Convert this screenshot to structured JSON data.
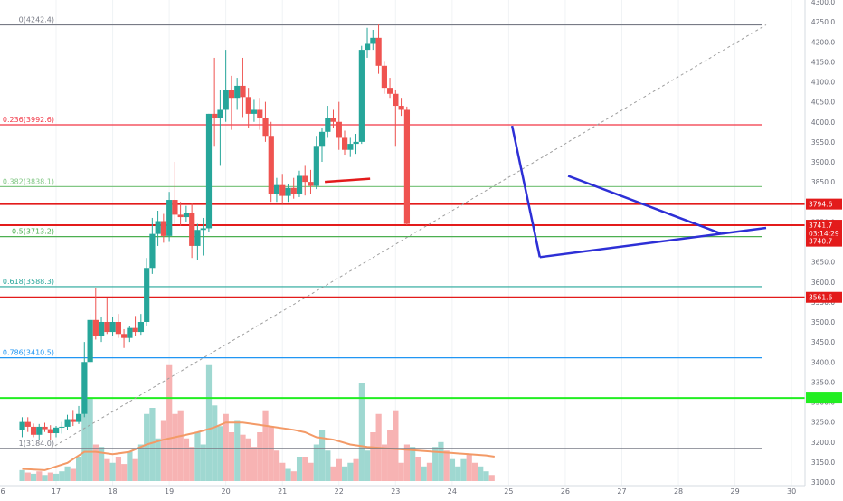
{
  "chart_data": {
    "type": "candlestick",
    "instrument_timeframe": "4h",
    "x_axis": {
      "tick_labels": [
        "6",
        "17",
        "18",
        "19",
        "20",
        "21",
        "22",
        "23",
        "24",
        "25",
        "26",
        "27",
        "28",
        "29",
        "30"
      ]
    },
    "y_axis": {
      "ylim": [
        3100,
        4300
      ],
      "tick_labels": [
        "4300.0",
        "4250.0",
        "4200.0",
        "4150.0",
        "4100.0",
        "4050.0",
        "4000.0",
        "3950.0",
        "3900.0",
        "3850.0",
        "3800.0",
        "3750.0",
        "3700.0",
        "3650.0",
        "3600.0",
        "3550.0",
        "3500.0",
        "3450.0",
        "3400.0",
        "3350.0",
        "3300.0",
        "3250.0",
        "3200.0",
        "3150.0",
        "3100.0"
      ],
      "tick_values": [
        4300,
        4250,
        4200,
        4150,
        4100,
        4050,
        4000,
        3950,
        3900,
        3850,
        3800,
        3750,
        3700,
        3650,
        3600,
        3550,
        3500,
        3450,
        3400,
        3350,
        3300,
        3250,
        3200,
        3150,
        3100
      ]
    },
    "fib_levels": [
      {
        "label": "0(4242.4)",
        "value": 4242.4,
        "color": "#787b86"
      },
      {
        "label": "0.236(3992.6)",
        "value": 3992.6,
        "color": "#f23645"
      },
      {
        "label": "0.382(3838.1)",
        "value": 3838.1,
        "color": "#81c784"
      },
      {
        "label": "0.5(3713.2)",
        "value": 3713.2,
        "color": "#4caf50"
      },
      {
        "label": "0.618(3588.3)",
        "value": 3588.3,
        "color": "#26a69a"
      },
      {
        "label": "0.786(3410.5)",
        "value": 3410.5,
        "color": "#2196f3"
      },
      {
        "label": "1(3184.0)",
        "value": 3184.0,
        "color": "#787b86"
      }
    ],
    "horizontal_lines": [
      {
        "value": 3794.6,
        "color": "#e31b1b"
      },
      {
        "value": 3741.7,
        "color": "#e31b1b"
      },
      {
        "value": 3561.6,
        "color": "#e31b1b"
      },
      {
        "value": 3310.0,
        "color": "#22ee22"
      }
    ],
    "price_tags": [
      {
        "label": "3794.6",
        "value": 3794.6,
        "color": "#e31b1b"
      },
      {
        "label": "3741.7",
        "value": 3741.7,
        "color": "#e31b1b"
      },
      {
        "label": "03:14:29",
        "value": 3722,
        "color": "#e31b1b"
      },
      {
        "label": "3740.7",
        "value": 3702,
        "color": "#e31b1b"
      },
      {
        "label": "3561.6",
        "value": 3561.6,
        "color": "#e31b1b"
      },
      {
        "label": "",
        "value": 3310.0,
        "color": "#22ee22"
      }
    ],
    "trend_lines": [
      {
        "name": "fib-diagonal",
        "style": "dashed",
        "color": "#9e9e9e",
        "from": [
          16.9,
          3184.0
        ],
        "to": [
          29.55,
          4242.4
        ]
      },
      {
        "name": "triangle-drop",
        "style": "solid",
        "color": "#2d2fd6",
        "from": [
          25.06,
          3990
        ],
        "to": [
          25.55,
          3662
        ]
      },
      {
        "name": "triangle-lower",
        "style": "solid",
        "color": "#2d2fd6",
        "from": [
          25.55,
          3662
        ],
        "to": [
          29.55,
          3735
        ]
      },
      {
        "name": "triangle-upper",
        "style": "solid",
        "color": "#2d2fd6",
        "from": [
          26.05,
          3865
        ],
        "to": [
          28.75,
          3721
        ]
      },
      {
        "name": "red-segment",
        "style": "solid",
        "color": "#e31b1b",
        "from": [
          21.75,
          3850
        ],
        "to": [
          22.55,
          3858
        ]
      }
    ],
    "candles": [
      {
        "t": 16.4,
        "o": 3230,
        "h": 3262,
        "l": 3212,
        "c": 3250
      },
      {
        "t": 16.5,
        "o": 3250,
        "h": 3262,
        "l": 3225,
        "c": 3238
      },
      {
        "t": 16.6,
        "o": 3238,
        "h": 3246,
        "l": 3212,
        "c": 3218
      },
      {
        "t": 16.7,
        "o": 3218,
        "h": 3245,
        "l": 3205,
        "c": 3238
      },
      {
        "t": 16.8,
        "o": 3238,
        "h": 3248,
        "l": 3225,
        "c": 3232
      },
      {
        "t": 16.9,
        "o": 3232,
        "h": 3242,
        "l": 3206,
        "c": 3222
      },
      {
        "t": 17.0,
        "o": 3222,
        "h": 3240,
        "l": 3212,
        "c": 3236
      },
      {
        "t": 17.1,
        "o": 3236,
        "h": 3250,
        "l": 3221,
        "c": 3238
      },
      {
        "t": 17.2,
        "o": 3238,
        "h": 3268,
        "l": 3230,
        "c": 3257
      },
      {
        "t": 17.3,
        "o": 3257,
        "h": 3280,
        "l": 3240,
        "c": 3250
      },
      {
        "t": 17.4,
        "o": 3250,
        "h": 3290,
        "l": 3245,
        "c": 3270
      },
      {
        "t": 17.5,
        "o": 3270,
        "h": 3450,
        "l": 3262,
        "c": 3400
      },
      {
        "t": 17.6,
        "o": 3400,
        "h": 3520,
        "l": 3395,
        "c": 3505
      },
      {
        "t": 17.7,
        "o": 3505,
        "h": 3585,
        "l": 3456,
        "c": 3465
      },
      {
        "t": 17.8,
        "o": 3465,
        "h": 3512,
        "l": 3450,
        "c": 3500
      },
      {
        "t": 17.9,
        "o": 3500,
        "h": 3560,
        "l": 3470,
        "c": 3475
      },
      {
        "t": 18.0,
        "o": 3475,
        "h": 3512,
        "l": 3466,
        "c": 3500
      },
      {
        "t": 18.1,
        "o": 3500,
        "h": 3520,
        "l": 3460,
        "c": 3470
      },
      {
        "t": 18.2,
        "o": 3470,
        "h": 3482,
        "l": 3435,
        "c": 3460
      },
      {
        "t": 18.3,
        "o": 3460,
        "h": 3490,
        "l": 3450,
        "c": 3485
      },
      {
        "t": 18.4,
        "o": 3485,
        "h": 3515,
        "l": 3465,
        "c": 3475
      },
      {
        "t": 18.5,
        "o": 3475,
        "h": 3520,
        "l": 3468,
        "c": 3500
      },
      {
        "t": 18.6,
        "o": 3500,
        "h": 3660,
        "l": 3490,
        "c": 3635
      },
      {
        "t": 18.7,
        "o": 3635,
        "h": 3760,
        "l": 3620,
        "c": 3720
      },
      {
        "t": 18.8,
        "o": 3720,
        "h": 3778,
        "l": 3690,
        "c": 3752
      },
      {
        "t": 18.9,
        "o": 3752,
        "h": 3770,
        "l": 3698,
        "c": 3715
      },
      {
        "t": 19.0,
        "o": 3715,
        "h": 3825,
        "l": 3700,
        "c": 3805
      },
      {
        "t": 19.1,
        "o": 3805,
        "h": 3900,
        "l": 3745,
        "c": 3768
      },
      {
        "t": 19.2,
        "o": 3768,
        "h": 3800,
        "l": 3740,
        "c": 3762
      },
      {
        "t": 19.3,
        "o": 3762,
        "h": 3790,
        "l": 3750,
        "c": 3772
      },
      {
        "t": 19.4,
        "o": 3772,
        "h": 3798,
        "l": 3660,
        "c": 3690
      },
      {
        "t": 19.5,
        "o": 3690,
        "h": 3745,
        "l": 3655,
        "c": 3730
      },
      {
        "t": 19.6,
        "o": 3730,
        "h": 3760,
        "l": 3666,
        "c": 3734
      },
      {
        "t": 19.7,
        "o": 3734,
        "h": 4020,
        "l": 3725,
        "c": 4020
      },
      {
        "t": 19.8,
        "o": 4020,
        "h": 4160,
        "l": 3940,
        "c": 4010
      },
      {
        "t": 19.9,
        "o": 4010,
        "h": 4080,
        "l": 3890,
        "c": 4030
      },
      {
        "t": 20.0,
        "o": 4030,
        "h": 4180,
        "l": 4000,
        "c": 4080
      },
      {
        "t": 20.1,
        "o": 4080,
        "h": 4115,
        "l": 3980,
        "c": 4060
      },
      {
        "t": 20.2,
        "o": 4060,
        "h": 4110,
        "l": 4030,
        "c": 4090
      },
      {
        "t": 20.3,
        "o": 4090,
        "h": 4160,
        "l": 4012,
        "c": 4062
      },
      {
        "t": 20.4,
        "o": 4062,
        "h": 4085,
        "l": 3985,
        "c": 4020
      },
      {
        "t": 20.5,
        "o": 4020,
        "h": 4055,
        "l": 4000,
        "c": 4030
      },
      {
        "t": 20.6,
        "o": 4030,
        "h": 4060,
        "l": 3980,
        "c": 4010
      },
      {
        "t": 20.7,
        "o": 4010,
        "h": 4050,
        "l": 3950,
        "c": 3965
      },
      {
        "t": 20.8,
        "o": 3965,
        "h": 4000,
        "l": 3800,
        "c": 3820
      },
      {
        "t": 20.9,
        "o": 3820,
        "h": 3860,
        "l": 3800,
        "c": 3842
      },
      {
        "t": 21.0,
        "o": 3842,
        "h": 3870,
        "l": 3795,
        "c": 3815
      },
      {
        "t": 21.1,
        "o": 3815,
        "h": 3845,
        "l": 3800,
        "c": 3835
      },
      {
        "t": 21.2,
        "o": 3835,
        "h": 3860,
        "l": 3808,
        "c": 3820
      },
      {
        "t": 21.3,
        "o": 3820,
        "h": 3878,
        "l": 3812,
        "c": 3865
      },
      {
        "t": 21.4,
        "o": 3865,
        "h": 3890,
        "l": 3816,
        "c": 3850
      },
      {
        "t": 21.5,
        "o": 3850,
        "h": 3880,
        "l": 3820,
        "c": 3840
      },
      {
        "t": 21.6,
        "o": 3840,
        "h": 3965,
        "l": 3832,
        "c": 3940
      },
      {
        "t": 21.7,
        "o": 3940,
        "h": 3985,
        "l": 3900,
        "c": 3975
      },
      {
        "t": 21.8,
        "o": 3975,
        "h": 4040,
        "l": 3960,
        "c": 4010
      },
      {
        "t": 21.9,
        "o": 4010,
        "h": 4030,
        "l": 3985,
        "c": 4000
      },
      {
        "t": 22.0,
        "o": 4000,
        "h": 4050,
        "l": 3930,
        "c": 3960
      },
      {
        "t": 22.1,
        "o": 3960,
        "h": 3978,
        "l": 3918,
        "c": 3930
      },
      {
        "t": 22.2,
        "o": 3930,
        "h": 3960,
        "l": 3912,
        "c": 3945
      },
      {
        "t": 22.3,
        "o": 3945,
        "h": 3970,
        "l": 3920,
        "c": 3950
      },
      {
        "t": 22.4,
        "o": 3950,
        "h": 4190,
        "l": 3945,
        "c": 4180
      },
      {
        "t": 22.5,
        "o": 4180,
        "h": 4235,
        "l": 4160,
        "c": 4195
      },
      {
        "t": 22.6,
        "o": 4195,
        "h": 4230,
        "l": 4180,
        "c": 4210
      },
      {
        "t": 22.7,
        "o": 4210,
        "h": 4245,
        "l": 4120,
        "c": 4140
      },
      {
        "t": 22.8,
        "o": 4140,
        "h": 4150,
        "l": 4070,
        "c": 4085
      },
      {
        "t": 22.9,
        "o": 4085,
        "h": 4110,
        "l": 4060,
        "c": 4070
      },
      {
        "t": 23.0,
        "o": 4070,
        "h": 4080,
        "l": 3940,
        "c": 4040
      },
      {
        "t": 23.1,
        "o": 4040,
        "h": 4060,
        "l": 4015,
        "c": 4030
      },
      {
        "t": 23.2,
        "o": 4030,
        "h": 4038,
        "l": 3742,
        "c": 3745
      }
    ],
    "volumes": [
      {
        "t": 16.4,
        "v": 0.09,
        "up": true
      },
      {
        "t": 16.5,
        "v": 0.07,
        "up": false
      },
      {
        "t": 16.6,
        "v": 0.06,
        "up": true
      },
      {
        "t": 16.7,
        "v": 0.08,
        "up": false
      },
      {
        "t": 16.8,
        "v": 0.05,
        "up": true
      },
      {
        "t": 16.9,
        "v": 0.07,
        "up": false
      },
      {
        "t": 17.0,
        "v": 0.06,
        "up": true
      },
      {
        "t": 17.1,
        "v": 0.08,
        "up": true
      },
      {
        "t": 17.2,
        "v": 0.12,
        "up": true
      },
      {
        "t": 17.3,
        "v": 0.1,
        "up": false
      },
      {
        "t": 17.4,
        "v": 0.2,
        "up": true
      },
      {
        "t": 17.5,
        "v": 0.55,
        "up": true
      },
      {
        "t": 17.6,
        "v": 0.68,
        "up": true
      },
      {
        "t": 17.7,
        "v": 0.3,
        "up": false
      },
      {
        "t": 17.8,
        "v": 0.28,
        "up": true
      },
      {
        "t": 17.9,
        "v": 0.18,
        "up": false
      },
      {
        "t": 18.0,
        "v": 0.15,
        "up": true
      },
      {
        "t": 18.1,
        "v": 0.2,
        "up": false
      },
      {
        "t": 18.2,
        "v": 0.14,
        "up": false
      },
      {
        "t": 18.3,
        "v": 0.24,
        "up": true
      },
      {
        "t": 18.4,
        "v": 0.18,
        "up": false
      },
      {
        "t": 18.5,
        "v": 0.3,
        "up": true
      },
      {
        "t": 18.6,
        "v": 0.55,
        "up": true
      },
      {
        "t": 18.7,
        "v": 0.6,
        "up": true
      },
      {
        "t": 18.8,
        "v": 0.35,
        "up": true
      },
      {
        "t": 18.9,
        "v": 0.5,
        "up": false
      },
      {
        "t": 19.0,
        "v": 0.95,
        "up": false
      },
      {
        "t": 19.1,
        "v": 0.55,
        "up": false
      },
      {
        "t": 19.2,
        "v": 0.58,
        "up": false
      },
      {
        "t": 19.3,
        "v": 0.35,
        "up": false
      },
      {
        "t": 19.4,
        "v": 0.28,
        "up": false
      },
      {
        "t": 19.5,
        "v": 0.4,
        "up": true
      },
      {
        "t": 19.6,
        "v": 0.3,
        "up": true
      },
      {
        "t": 19.7,
        "v": 0.95,
        "up": true
      },
      {
        "t": 19.8,
        "v": 0.62,
        "up": true
      },
      {
        "t": 19.9,
        "v": 0.45,
        "up": true
      },
      {
        "t": 20.0,
        "v": 0.55,
        "up": false
      },
      {
        "t": 20.1,
        "v": 0.4,
        "up": false
      },
      {
        "t": 20.2,
        "v": 0.5,
        "up": true
      },
      {
        "t": 20.3,
        "v": 0.38,
        "up": false
      },
      {
        "t": 20.4,
        "v": 0.35,
        "up": false
      },
      {
        "t": 20.5,
        "v": 0.28,
        "up": false
      },
      {
        "t": 20.6,
        "v": 0.4,
        "up": false
      },
      {
        "t": 20.7,
        "v": 0.58,
        "up": false
      },
      {
        "t": 20.8,
        "v": 0.45,
        "up": false
      },
      {
        "t": 20.9,
        "v": 0.25,
        "up": false
      },
      {
        "t": 21.0,
        "v": 0.15,
        "up": false
      },
      {
        "t": 21.1,
        "v": 0.1,
        "up": true
      },
      {
        "t": 21.2,
        "v": 0.08,
        "up": false
      },
      {
        "t": 21.3,
        "v": 0.2,
        "up": true
      },
      {
        "t": 21.4,
        "v": 0.2,
        "up": false
      },
      {
        "t": 21.5,
        "v": 0.15,
        "up": false
      },
      {
        "t": 21.6,
        "v": 0.3,
        "up": true
      },
      {
        "t": 21.7,
        "v": 0.42,
        "up": true
      },
      {
        "t": 21.8,
        "v": 0.25,
        "up": true
      },
      {
        "t": 21.9,
        "v": 0.12,
        "up": false
      },
      {
        "t": 22.0,
        "v": 0.18,
        "up": false
      },
      {
        "t": 22.1,
        "v": 0.12,
        "up": true
      },
      {
        "t": 22.2,
        "v": 0.15,
        "up": true
      },
      {
        "t": 22.3,
        "v": 0.18,
        "up": false
      },
      {
        "t": 22.4,
        "v": 0.8,
        "up": true
      },
      {
        "t": 22.5,
        "v": 0.25,
        "up": true
      },
      {
        "t": 22.6,
        "v": 0.4,
        "up": false
      },
      {
        "t": 22.7,
        "v": 0.55,
        "up": false
      },
      {
        "t": 22.8,
        "v": 0.3,
        "up": false
      },
      {
        "t": 22.9,
        "v": 0.42,
        "up": false
      },
      {
        "t": 23.0,
        "v": 0.58,
        "up": false
      },
      {
        "t": 23.1,
        "v": 0.15,
        "up": false
      },
      {
        "t": 23.2,
        "v": 0.3,
        "up": false
      },
      {
        "t": 23.3,
        "v": 0.28,
        "up": true
      },
      {
        "t": 23.4,
        "v": 0.2,
        "up": false
      },
      {
        "t": 23.5,
        "v": 0.12,
        "up": true
      },
      {
        "t": 23.6,
        "v": 0.15,
        "up": false
      },
      {
        "t": 23.7,
        "v": 0.28,
        "up": true
      },
      {
        "t": 23.8,
        "v": 0.32,
        "up": true
      },
      {
        "t": 23.9,
        "v": 0.25,
        "up": false
      },
      {
        "t": 24.0,
        "v": 0.18,
        "up": true
      },
      {
        "t": 24.1,
        "v": 0.12,
        "up": true
      },
      {
        "t": 24.2,
        "v": 0.18,
        "up": true
      },
      {
        "t": 24.3,
        "v": 0.22,
        "up": false
      },
      {
        "t": 24.4,
        "v": 0.15,
        "up": false
      },
      {
        "t": 24.5,
        "v": 0.12,
        "up": true
      },
      {
        "t": 24.6,
        "v": 0.08,
        "up": true
      },
      {
        "t": 24.7,
        "v": 0.05,
        "up": false
      }
    ],
    "volume_ma": [
      [
        16.4,
        0.1
      ],
      [
        16.8,
        0.09
      ],
      [
        17.2,
        0.15
      ],
      [
        17.5,
        0.24
      ],
      [
        17.7,
        0.24
      ],
      [
        18.0,
        0.22
      ],
      [
        18.3,
        0.24
      ],
      [
        18.6,
        0.3
      ],
      [
        18.9,
        0.34
      ],
      [
        19.2,
        0.37
      ],
      [
        19.5,
        0.4
      ],
      [
        19.8,
        0.44
      ],
      [
        20.0,
        0.48
      ],
      [
        20.3,
        0.48
      ],
      [
        20.6,
        0.46
      ],
      [
        20.9,
        0.44
      ],
      [
        21.2,
        0.42
      ],
      [
        21.4,
        0.4
      ],
      [
        21.6,
        0.36
      ],
      [
        21.9,
        0.34
      ],
      [
        22.2,
        0.3
      ],
      [
        22.5,
        0.28
      ],
      [
        22.8,
        0.27
      ],
      [
        23.1,
        0.26
      ],
      [
        23.4,
        0.25
      ],
      [
        23.7,
        0.24
      ],
      [
        24.0,
        0.23
      ],
      [
        24.3,
        0.22
      ],
      [
        24.6,
        0.21
      ],
      [
        24.75,
        0.2
      ]
    ]
  }
}
